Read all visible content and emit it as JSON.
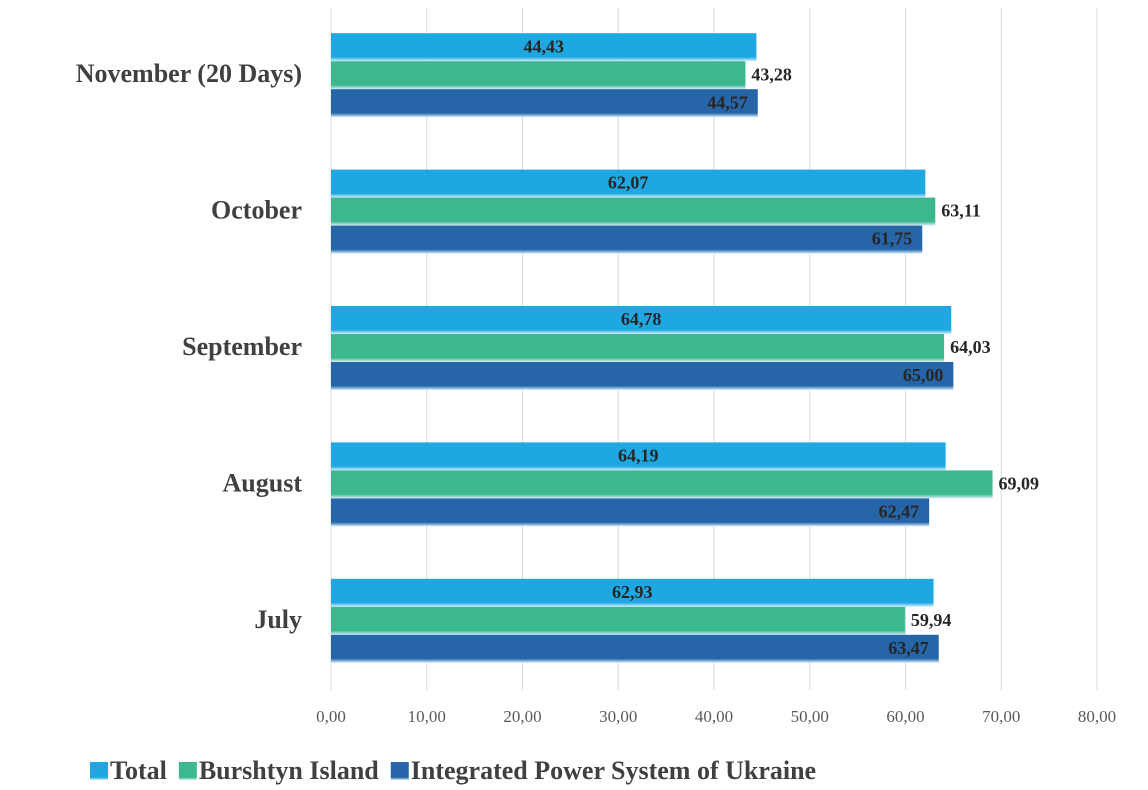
{
  "chart_data": {
    "type": "hbar",
    "categories": [
      "November (20 Days)",
      "October",
      "September",
      "August",
      "July"
    ],
    "series": [
      {
        "name": "Total",
        "color": "#1ea7e1",
        "values": [
          44.43,
          62.07,
          64.78,
          64.19,
          62.93
        ],
        "value_labels": [
          "44,43",
          "62,07",
          "64,78",
          "64,19",
          "62,93"
        ]
      },
      {
        "name": "Burshtyn Island",
        "color": "#3cb88f",
        "values": [
          43.28,
          63.11,
          64.03,
          69.09,
          59.94
        ],
        "value_labels": [
          "43,28",
          "63,11",
          "64,03",
          "69,09",
          "59,94"
        ]
      },
      {
        "name": "Integrated Power System of Ukraine",
        "color": "#2565a8",
        "values": [
          44.57,
          61.75,
          65.0,
          62.47,
          63.47
        ],
        "value_labels": [
          "44,57",
          "61,75",
          "65,00",
          "62,47",
          "63,47"
        ]
      }
    ],
    "xlim": [
      0,
      80
    ],
    "xticks": [
      {
        "value": 0,
        "label": "0,00"
      },
      {
        "value": 10,
        "label": "10,00"
      },
      {
        "value": 20,
        "label": "20,00"
      },
      {
        "value": 30,
        "label": "30,00"
      },
      {
        "value": 40,
        "label": "40,00"
      },
      {
        "value": 50,
        "label": "50,00"
      },
      {
        "value": 60,
        "label": "60,00"
      },
      {
        "value": 70,
        "label": "70,00"
      },
      {
        "value": 80,
        "label": "80,00"
      }
    ],
    "grid": true,
    "legend": "bottom"
  }
}
